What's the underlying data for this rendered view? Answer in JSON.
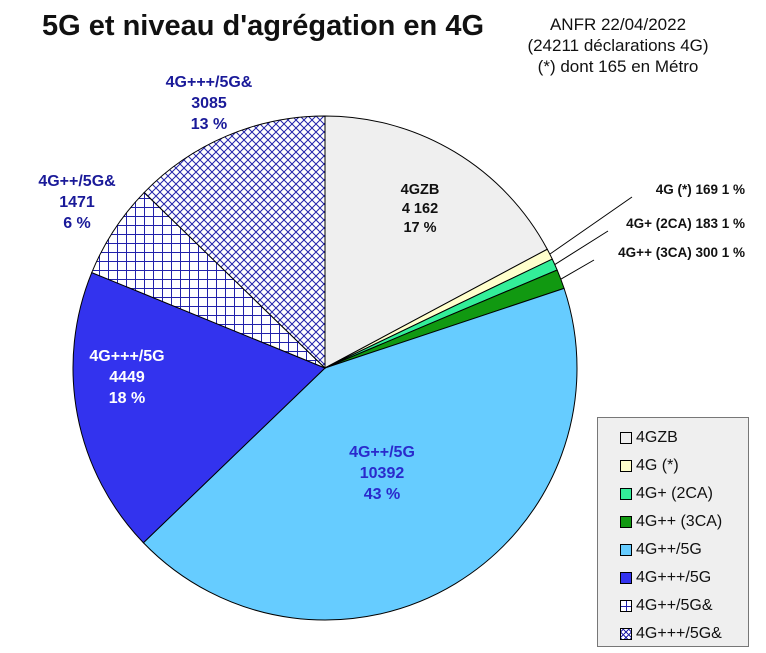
{
  "header": {
    "title": "5G et niveau d'agrégation en 4G",
    "source_lines": [
      "ANFR 22/04/2022",
      "(24211 déclarations 4G)",
      "(*) dont 165 en Métro"
    ]
  },
  "chart_data": {
    "type": "pie",
    "title": "5G et niveau d'agrégation en 4G",
    "legend_position": "bottom-right",
    "slices": [
      {
        "name": "4GZB",
        "value": 4162,
        "value_label": "4 162",
        "percent_label": "17 %",
        "color": "#efefef",
        "pattern": "solid",
        "label_color": "#111111"
      },
      {
        "name": "4G (*)",
        "value": 169,
        "value_label": "169",
        "percent_label": "1 %",
        "color": "#ffffcc",
        "pattern": "solid",
        "label_color": "#111111"
      },
      {
        "name": "4G+ (2CA)",
        "value": 183,
        "value_label": "183",
        "percent_label": "1 %",
        "color": "#33ee99",
        "pattern": "solid",
        "label_color": "#111111"
      },
      {
        "name": "4G++ (3CA)",
        "value": 300,
        "value_label": "300",
        "percent_label": "1 %",
        "color": "#119911",
        "pattern": "solid",
        "label_color": "#111111"
      },
      {
        "name": "4G++/5G",
        "value": 10392,
        "value_label": "10392",
        "percent_label": "43 %",
        "color": "#66ccff",
        "pattern": "solid",
        "label_color": "#2a2acc"
      },
      {
        "name": "4G+++/5G",
        "value": 4449,
        "value_label": "4449",
        "percent_label": "18 %",
        "color": "#3333ee",
        "pattern": "solid",
        "label_color": "#ffffff"
      },
      {
        "name": "4G++/5G&",
        "value": 1471,
        "value_label": "1471",
        "percent_label": "6 %",
        "color": "#2222aa",
        "pattern": "grid",
        "label_color": "#1a1a99"
      },
      {
        "name": "4G+++/5G&",
        "value": 3085,
        "value_label": "3085",
        "percent_label": "13 %",
        "color": "#2222aa",
        "pattern": "crosshatch",
        "label_color": "#1a1a99"
      }
    ]
  }
}
